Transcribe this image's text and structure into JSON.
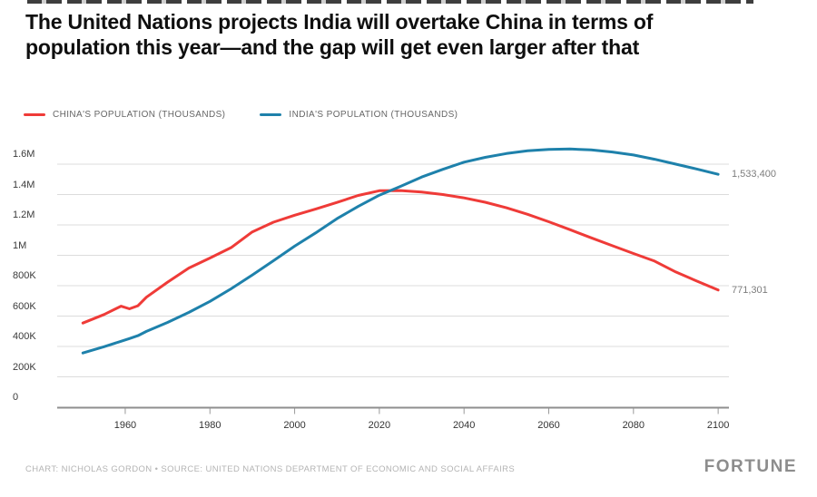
{
  "header": {
    "title": "The United Nations projects India will overtake China in terms of population this year—and the gap will get even larger after that"
  },
  "legend": {
    "china": {
      "label": "CHINA'S POPULATION (THOUSANDS)",
      "color": "#ef3b38"
    },
    "india": {
      "label": "INDIA'S POPULATION (THOUSANDS)",
      "color": "#1e81ab"
    }
  },
  "chart_data": {
    "type": "line",
    "title": "The United Nations projects India will overtake China in terms of population this year—and the gap will get even larger after that",
    "unit": "thousands",
    "x": [
      1950,
      1955,
      1959,
      1961,
      1963,
      1965,
      1970,
      1975,
      1980,
      1985,
      1990,
      1995,
      2000,
      2005,
      2010,
      2015,
      2020,
      2025,
      2030,
      2035,
      2040,
      2045,
      2050,
      2055,
      2060,
      2065,
      2070,
      2075,
      2080,
      2085,
      2090,
      2095,
      2100
    ],
    "series": [
      {
        "name": "China's population (thousands)",
        "color": "#ef3b38",
        "end_label": "771,301",
        "end_value": 771301,
        "values": [
          554000,
          610000,
          665000,
          648000,
          668000,
          724000,
          823000,
          916000,
          982000,
          1051000,
          1154000,
          1218000,
          1264000,
          1305000,
          1348000,
          1394000,
          1425000,
          1426000,
          1416000,
          1400000,
          1378000,
          1349000,
          1313000,
          1270000,
          1221000,
          1169000,
          1115000,
          1063000,
          1012000,
          962000,
          890000,
          830000,
          771301
        ]
      },
      {
        "name": "India's population (thousands)",
        "color": "#1e81ab",
        "end_label": "1,533,400",
        "end_value": 1533400,
        "values": [
          357000,
          398000,
          434000,
          452000,
          471000,
          499000,
          558000,
          624000,
          697000,
          780000,
          870000,
          964000,
          1060000,
          1148000,
          1241000,
          1322000,
          1396000,
          1454000,
          1515000,
          1566000,
          1613000,
          1645000,
          1670000,
          1688000,
          1697000,
          1700000,
          1694000,
          1680000,
          1660000,
          1632000,
          1600000,
          1568000,
          1533400
        ]
      }
    ],
    "y_ticks": [
      {
        "label": "0",
        "value": 0
      },
      {
        "label": "200K",
        "value": 200000
      },
      {
        "label": "400K",
        "value": 400000
      },
      {
        "label": "600K",
        "value": 600000
      },
      {
        "label": "800K",
        "value": 800000
      },
      {
        "label": "1M",
        "value": 1000000
      },
      {
        "label": "1.2M",
        "value": 1200000
      },
      {
        "label": "1.4M",
        "value": 1400000
      },
      {
        "label": "1.6M",
        "value": 1600000
      }
    ],
    "x_ticks": [
      1960,
      1980,
      2000,
      2020,
      2040,
      2060,
      2080,
      2100
    ],
    "xlim": [
      1950,
      2100
    ],
    "ylim": [
      0,
      1600000
    ],
    "grid": true,
    "legend_position": "top"
  },
  "footer": {
    "credit": "CHART: NICHOLAS GORDON • SOURCE: UNITED NATIONS DEPARTMENT OF ECONOMIC AND SOCIAL AFFAIRS",
    "logo": "FORTUNE"
  }
}
